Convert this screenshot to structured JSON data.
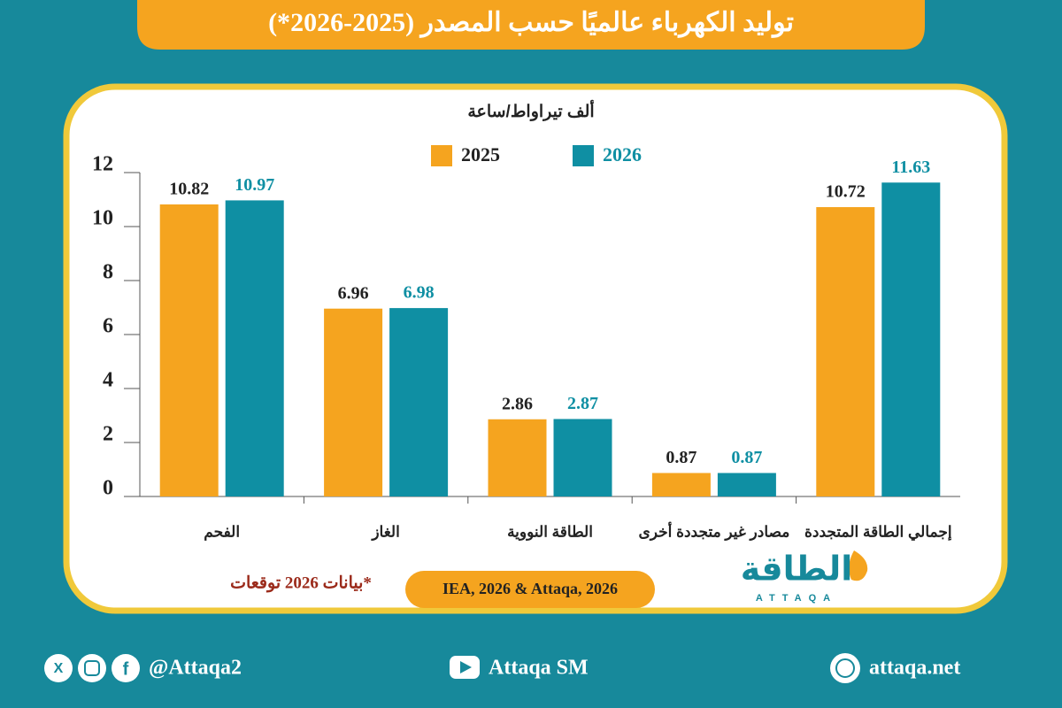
{
  "chart_data": {
    "type": "bar",
    "title": "توليد الكهرباء عالميًا حسب المصدر (2025-2026*)",
    "y_label": "ألف تيراواط/ساعة",
    "categories": [
      "الفحم",
      "الغاز",
      "الطاقة النووية",
      "مصادر غير متجددة أخرى",
      "إجمالي الطاقة المتجددة"
    ],
    "series": [
      {
        "name": "2025",
        "color": "#f5a41f",
        "values": [
          10.82,
          6.96,
          2.86,
          0.87,
          10.72
        ]
      },
      {
        "name": "2026",
        "color": "#0f8fa3",
        "values": [
          10.97,
          6.98,
          2.87,
          0.87,
          11.63
        ]
      }
    ],
    "ylim": [
      0,
      12
    ],
    "yticks": [
      0,
      2,
      4,
      6,
      8,
      10,
      12
    ],
    "footnote": "*بيانات 2026 توقعات",
    "source": "IEA, 2026 & Attaqa, 2026",
    "logo": {
      "text": "الطاقة",
      "latin": "ATTAQA"
    },
    "footer": {
      "social": "@Attaqa2",
      "youtube": "Attaqa SM",
      "website": "attaqa.net"
    }
  }
}
